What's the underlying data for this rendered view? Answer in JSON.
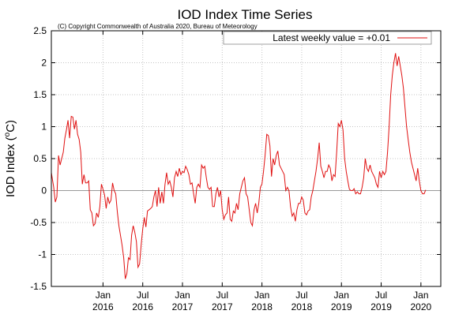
{
  "chart_data": {
    "type": "line",
    "title": "IOD Index Time Series",
    "subtitle": "(C) Copyright Commonwealth of Australia 2020, Bureau of Meteorology",
    "ylabel_main": "IOD Index (",
    "ylabel_sup": "o",
    "ylabel_unit": "C)",
    "xlabel": "",
    "legend_position": "top-right",
    "grid": true,
    "ylim": [
      -1.5,
      2.5
    ],
    "yticks": [
      "-1.5",
      "-1",
      "-0.5",
      "0",
      "0.5",
      "1",
      "1.5",
      "2",
      "2.5"
    ],
    "xlim": [
      2015.35,
      2020.25
    ],
    "xticks": [
      {
        "x": 2016.0,
        "month": "Jan",
        "year": "2016"
      },
      {
        "x": 2016.5,
        "month": "Jul",
        "year": "2016"
      },
      {
        "x": 2017.0,
        "month": "Jan",
        "year": "2017"
      },
      {
        "x": 2017.5,
        "month": "Jul",
        "year": "2017"
      },
      {
        "x": 2018.0,
        "month": "Jan",
        "year": "2018"
      },
      {
        "x": 2018.5,
        "month": "Jul",
        "year": "2018"
      },
      {
        "x": 2019.0,
        "month": "Jan",
        "year": "2019"
      },
      {
        "x": 2019.5,
        "month": "Jul",
        "year": "2019"
      },
      {
        "x": 2020.0,
        "month": "Jan",
        "year": "2020"
      }
    ],
    "series": [
      {
        "name": "Latest weekly value = +0.01",
        "color": "#e01010",
        "points": [
          [
            2015.35,
            0.28
          ],
          [
            2015.38,
            0.05
          ],
          [
            2015.4,
            -0.18
          ],
          [
            2015.42,
            -0.1
          ],
          [
            2015.44,
            0.55
          ],
          [
            2015.46,
            0.4
          ],
          [
            2015.48,
            0.5
          ],
          [
            2015.5,
            0.6
          ],
          [
            2015.52,
            0.82
          ],
          [
            2015.54,
            0.95
          ],
          [
            2015.56,
            1.1
          ],
          [
            2015.58,
            0.82
          ],
          [
            2015.6,
            1.16
          ],
          [
            2015.62,
            1.15
          ],
          [
            2015.64,
            0.96
          ],
          [
            2015.66,
            1.1
          ],
          [
            2015.68,
            0.88
          ],
          [
            2015.7,
            0.8
          ],
          [
            2015.72,
            0.6
          ],
          [
            2015.74,
            0.1
          ],
          [
            2015.76,
            0.25
          ],
          [
            2015.78,
            0.12
          ],
          [
            2015.8,
            0.12
          ],
          [
            2015.82,
            0.15
          ],
          [
            2015.84,
            -0.3
          ],
          [
            2015.86,
            -0.35
          ],
          [
            2015.88,
            -0.55
          ],
          [
            2015.9,
            -0.52
          ],
          [
            2015.92,
            -0.35
          ],
          [
            2015.94,
            -0.42
          ],
          [
            2015.96,
            -0.25
          ],
          [
            2015.98,
            0.1
          ],
          [
            2016.0,
            0.02
          ],
          [
            2016.02,
            -0.07
          ],
          [
            2016.04,
            -0.28
          ],
          [
            2016.06,
            -0.1
          ],
          [
            2016.08,
            -0.2
          ],
          [
            2016.1,
            -0.15
          ],
          [
            2016.12,
            0.12
          ],
          [
            2016.14,
            0.0
          ],
          [
            2016.16,
            -0.05
          ],
          [
            2016.18,
            -0.33
          ],
          [
            2016.2,
            -0.55
          ],
          [
            2016.22,
            -0.7
          ],
          [
            2016.24,
            -0.85
          ],
          [
            2016.26,
            -1.05
          ],
          [
            2016.28,
            -1.38
          ],
          [
            2016.3,
            -1.3
          ],
          [
            2016.32,
            -1.05
          ],
          [
            2016.34,
            -1.08
          ],
          [
            2016.36,
            -0.7
          ],
          [
            2016.38,
            -0.55
          ],
          [
            2016.4,
            -0.65
          ],
          [
            2016.42,
            -0.8
          ],
          [
            2016.44,
            -1.2
          ],
          [
            2016.46,
            -1.15
          ],
          [
            2016.48,
            -0.85
          ],
          [
            2016.5,
            -0.6
          ],
          [
            2016.52,
            -0.42
          ],
          [
            2016.54,
            -0.57
          ],
          [
            2016.56,
            -0.32
          ],
          [
            2016.58,
            -0.3
          ],
          [
            2016.6,
            -0.28
          ],
          [
            2016.62,
            -0.25
          ],
          [
            2016.64,
            -0.1
          ],
          [
            2016.66,
            0.0
          ],
          [
            2016.68,
            -0.25
          ],
          [
            2016.7,
            0.05
          ],
          [
            2016.72,
            -0.2
          ],
          [
            2016.74,
            -0.02
          ],
          [
            2016.76,
            -0.2
          ],
          [
            2016.78,
            0.1
          ],
          [
            2016.8,
            0.28
          ],
          [
            2016.82,
            0.1
          ],
          [
            2016.84,
            0.15
          ],
          [
            2016.86,
            0.05
          ],
          [
            2016.88,
            -0.1
          ],
          [
            2016.9,
            0.2
          ],
          [
            2016.92,
            0.3
          ],
          [
            2016.94,
            0.22
          ],
          [
            2016.96,
            0.35
          ],
          [
            2016.98,
            0.25
          ],
          [
            2017.0,
            0.3
          ],
          [
            2017.02,
            0.28
          ],
          [
            2017.04,
            0.38
          ],
          [
            2017.06,
            0.33
          ],
          [
            2017.08,
            0.25
          ],
          [
            2017.1,
            0.1
          ],
          [
            2017.12,
            0.12
          ],
          [
            2017.14,
            -0.05
          ],
          [
            2017.16,
            -0.2
          ],
          [
            2017.18,
            0.05
          ],
          [
            2017.2,
            0.1
          ],
          [
            2017.22,
            0.05
          ],
          [
            2017.24,
            0.4
          ],
          [
            2017.26,
            0.35
          ],
          [
            2017.28,
            0.38
          ],
          [
            2017.3,
            0.2
          ],
          [
            2017.32,
            0.05
          ],
          [
            2017.34,
            0.02
          ],
          [
            2017.36,
            0.05
          ],
          [
            2017.38,
            -0.25
          ],
          [
            2017.4,
            -0.25
          ],
          [
            2017.42,
            -0.05
          ],
          [
            2017.44,
            0.05
          ],
          [
            2017.46,
            -0.1
          ],
          [
            2017.48,
            0.0
          ],
          [
            2017.5,
            -0.3
          ],
          [
            2017.52,
            -0.45
          ],
          [
            2017.54,
            -0.38
          ],
          [
            2017.56,
            -0.35
          ],
          [
            2017.58,
            -0.1
          ],
          [
            2017.6,
            -0.45
          ],
          [
            2017.62,
            -0.48
          ],
          [
            2017.64,
            -0.32
          ],
          [
            2017.66,
            -0.35
          ],
          [
            2017.68,
            -0.2
          ],
          [
            2017.7,
            -0.3
          ],
          [
            2017.72,
            -0.05
          ],
          [
            2017.74,
            0.05
          ],
          [
            2017.76,
            0.15
          ],
          [
            2017.78,
            0.2
          ],
          [
            2017.8,
            -0.05
          ],
          [
            2017.82,
            -0.1
          ],
          [
            2017.84,
            -0.3
          ],
          [
            2017.86,
            -0.5
          ],
          [
            2017.88,
            -0.55
          ],
          [
            2017.9,
            -0.3
          ],
          [
            2017.92,
            -0.2
          ],
          [
            2017.94,
            -0.35
          ],
          [
            2017.96,
            -0.2
          ],
          [
            2017.98,
            0.05
          ],
          [
            2018.0,
            0.1
          ],
          [
            2018.02,
            0.3
          ],
          [
            2018.04,
            0.55
          ],
          [
            2018.06,
            0.88
          ],
          [
            2018.08,
            0.86
          ],
          [
            2018.1,
            0.7
          ],
          [
            2018.12,
            0.22
          ],
          [
            2018.14,
            0.5
          ],
          [
            2018.16,
            0.4
          ],
          [
            2018.18,
            0.55
          ],
          [
            2018.2,
            0.62
          ],
          [
            2018.22,
            0.4
          ],
          [
            2018.24,
            0.35
          ],
          [
            2018.26,
            0.3
          ],
          [
            2018.28,
            0.25
          ],
          [
            2018.3,
            0.0
          ],
          [
            2018.32,
            0.05
          ],
          [
            2018.34,
            0.0
          ],
          [
            2018.36,
            -0.25
          ],
          [
            2018.38,
            -0.4
          ],
          [
            2018.4,
            -0.35
          ],
          [
            2018.42,
            -0.48
          ],
          [
            2018.44,
            -0.3
          ],
          [
            2018.46,
            -0.2
          ],
          [
            2018.48,
            -0.2
          ],
          [
            2018.5,
            -0.1
          ],
          [
            2018.52,
            -0.15
          ],
          [
            2018.54,
            -0.35
          ],
          [
            2018.56,
            -0.38
          ],
          [
            2018.58,
            -0.32
          ],
          [
            2018.6,
            -0.3
          ],
          [
            2018.62,
            -0.1
          ],
          [
            2018.64,
            0.0
          ],
          [
            2018.66,
            0.15
          ],
          [
            2018.68,
            0.3
          ],
          [
            2018.7,
            0.5
          ],
          [
            2018.72,
            0.75
          ],
          [
            2018.74,
            0.38
          ],
          [
            2018.76,
            0.3
          ],
          [
            2018.78,
            0.2
          ],
          [
            2018.8,
            0.3
          ],
          [
            2018.82,
            0.3
          ],
          [
            2018.84,
            0.4
          ],
          [
            2018.86,
            0.35
          ],
          [
            2018.88,
            0.15
          ],
          [
            2018.9,
            0.25
          ],
          [
            2018.92,
            0.22
          ],
          [
            2018.94,
            0.6
          ],
          [
            2018.96,
            1.05
          ],
          [
            2018.98,
            1.0
          ],
          [
            2019.0,
            1.1
          ],
          [
            2019.02,
            0.95
          ],
          [
            2019.04,
            0.5
          ],
          [
            2019.06,
            0.3
          ],
          [
            2019.08,
            0.15
          ],
          [
            2019.1,
            0.02
          ],
          [
            2019.12,
            0.0
          ],
          [
            2019.14,
            0.0
          ],
          [
            2019.16,
            0.03
          ],
          [
            2019.18,
            -0.05
          ],
          [
            2019.2,
            -0.02
          ],
          [
            2019.22,
            -0.05
          ],
          [
            2019.24,
            -0.05
          ],
          [
            2019.26,
            0.05
          ],
          [
            2019.28,
            0.2
          ],
          [
            2019.3,
            0.5
          ],
          [
            2019.32,
            0.35
          ],
          [
            2019.34,
            0.3
          ],
          [
            2019.36,
            0.4
          ],
          [
            2019.38,
            0.3
          ],
          [
            2019.4,
            0.25
          ],
          [
            2019.42,
            0.2
          ],
          [
            2019.44,
            0.1
          ],
          [
            2019.46,
            0.05
          ],
          [
            2019.48,
            0.3
          ],
          [
            2019.5,
            0.2
          ],
          [
            2019.52,
            0.3
          ],
          [
            2019.54,
            0.25
          ],
          [
            2019.56,
            0.3
          ],
          [
            2019.58,
            0.6
          ],
          [
            2019.6,
            1.0
          ],
          [
            2019.62,
            1.5
          ],
          [
            2019.64,
            1.8
          ],
          [
            2019.66,
            2.0
          ],
          [
            2019.68,
            2.15
          ],
          [
            2019.7,
            1.95
          ],
          [
            2019.72,
            2.1
          ],
          [
            2019.74,
            1.95
          ],
          [
            2019.76,
            1.8
          ],
          [
            2019.78,
            1.6
          ],
          [
            2019.8,
            1.3
          ],
          [
            2019.82,
            1.0
          ],
          [
            2019.84,
            0.8
          ],
          [
            2019.86,
            0.6
          ],
          [
            2019.88,
            0.45
          ],
          [
            2019.9,
            0.35
          ],
          [
            2019.92,
            0.25
          ],
          [
            2019.94,
            0.15
          ],
          [
            2019.96,
            0.35
          ],
          [
            2019.98,
            0.15
          ],
          [
            2020.0,
            0.0
          ],
          [
            2020.02,
            -0.05
          ],
          [
            2020.04,
            -0.05
          ],
          [
            2020.06,
            0.01
          ]
        ]
      }
    ]
  }
}
